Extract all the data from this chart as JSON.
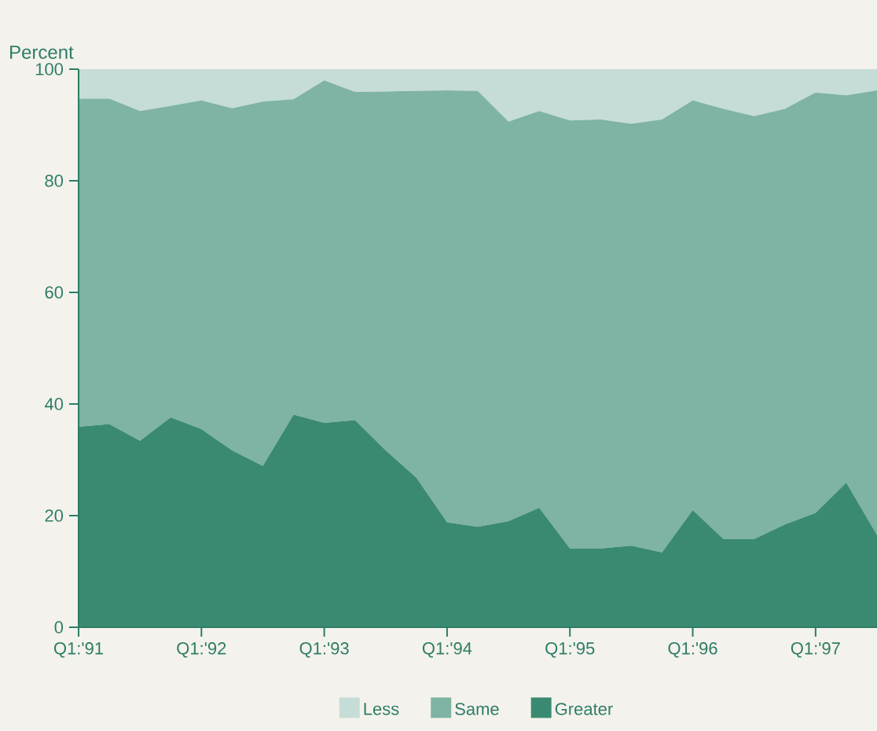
{
  "chart_data": {
    "type": "area",
    "stacked": true,
    "ylabel": "Percent",
    "legend": "bottom",
    "categories": [
      "Q1:'91",
      null,
      null,
      null,
      "Q1:'92",
      null,
      null,
      null,
      "Q1:'93",
      null,
      null,
      null,
      "Q1:'94",
      null,
      null,
      null,
      "Q1:'95",
      null,
      null,
      null,
      "Q1:'96",
      null,
      null,
      null,
      "Q1:'97",
      null,
      null
    ],
    "ylim": [
      0,
      100
    ],
    "yticks": [
      0,
      20,
      40,
      60,
      80,
      100
    ],
    "series": [
      {
        "name": "Greater",
        "color": "#3a8a72",
        "values": [
          35.9,
          36.4,
          33.4,
          37.6,
          35.5,
          31.7,
          28.9,
          38.1,
          36.6,
          37.1,
          31.7,
          26.8,
          18.8,
          18.0,
          19.0,
          21.4,
          14.1,
          14.1,
          14.6,
          13.4,
          21.0,
          15.8,
          15.8,
          18.4,
          20.5,
          25.9,
          16.5
        ]
      },
      {
        "name": "Same",
        "color": "#7fb3a3",
        "values": [
          58.8,
          58.3,
          59.1,
          55.8,
          58.9,
          61.3,
          65.3,
          56.5,
          61.4,
          58.8,
          64.3,
          69.3,
          77.4,
          78.1,
          71.6,
          71.1,
          76.7,
          76.9,
          75.6,
          77.6,
          73.4,
          77.1,
          75.8,
          74.5,
          75.3,
          69.4,
          79.7
        ]
      },
      {
        "name": "Less",
        "color": "#c5ddd6",
        "values": [
          5.3,
          5.3,
          7.5,
          6.6,
          5.6,
          7.0,
          5.8,
          5.4,
          2.0,
          4.1,
          4.0,
          3.9,
          3.8,
          3.9,
          9.4,
          7.5,
          9.2,
          9.0,
          9.8,
          9.0,
          5.6,
          7.1,
          8.4,
          7.1,
          4.2,
          4.7,
          3.8
        ]
      }
    ]
  }
}
